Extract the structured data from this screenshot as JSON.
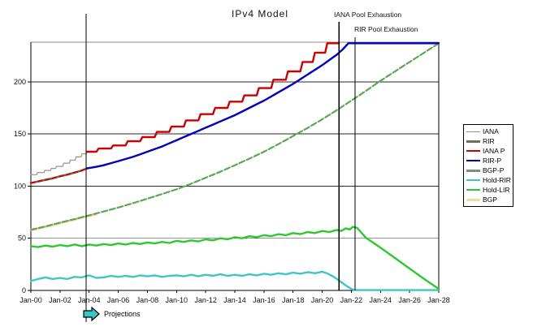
{
  "chart_data": {
    "type": "line",
    "title": "IPv4 Model",
    "projections_label": "Projections",
    "projections_start_year": 3.8,
    "x_axis": {
      "tick_years": [
        0,
        2,
        4,
        6,
        8,
        10,
        12,
        14,
        16,
        18,
        20,
        22,
        24,
        26,
        28
      ],
      "tick_labels": [
        "Jan-00",
        "Jan-02",
        "Jan-04",
        "Jan-06",
        "Jan-08",
        "Jan-10",
        "Jan-12",
        "Jan-14",
        "Jan-16",
        "Jan-18",
        "Jan-20",
        "Jan-22",
        "Jan-24",
        "Jan-26",
        "Jan-28"
      ]
    },
    "y_axis": {
      "tick_values": [
        0,
        50,
        100,
        150,
        200
      ],
      "tick_labels": [
        "0",
        "50",
        "100",
        "150",
        "200"
      ],
      "max": 238
    },
    "xlim_years": [
      0,
      28
    ],
    "annotations": [
      {
        "label": "IANA Pool Exhaustion",
        "year": 21.15
      },
      {
        "label": "RIR Pool Exhaustion",
        "year": 22.26
      }
    ],
    "legend": {
      "items": [
        {
          "label": "IANA",
          "color": "#98948a",
          "width": 1.2
        },
        {
          "label": "RIR",
          "color": "#6e6e5c",
          "width": 3
        },
        {
          "label": "IANA P",
          "color": "#cc0000",
          "width": 2.2
        },
        {
          "label": "RIR-P",
          "color": "#0000bb",
          "width": 2.2
        },
        {
          "label": "BGP-P",
          "color": "#7c8f72",
          "width": 3
        },
        {
          "label": "Hold-RIR",
          "color": "#3ec6c6",
          "width": 2.4
        },
        {
          "label": "Hold-LIR",
          "color": "#2ec82e",
          "width": 2.4
        },
        {
          "label": "BGP",
          "color": "#f5d9a0",
          "width": 3.2
        }
      ]
    },
    "series": [
      {
        "name": "bgp",
        "legend_label": "BGP",
        "color": "#f5d9a0",
        "width": 3.2,
        "points": [
          [
            0,
            58
          ],
          [
            0.5,
            59.5
          ],
          [
            1,
            61
          ],
          [
            1.5,
            62.5
          ],
          [
            2,
            64.5
          ],
          [
            2.5,
            66.5
          ],
          [
            3,
            68
          ],
          [
            3.5,
            70
          ],
          [
            4,
            71.5
          ],
          [
            4.5,
            73
          ]
        ]
      },
      {
        "name": "rir",
        "legend_label": "RIR",
        "color": "#6e6e5c",
        "width": 2.6,
        "points": [
          [
            0,
            103
          ],
          [
            0.5,
            104.5
          ],
          [
            1,
            106
          ],
          [
            1.5,
            107.5
          ],
          [
            2,
            109.5
          ],
          [
            2.5,
            111
          ],
          [
            3,
            113
          ],
          [
            3.5,
            115
          ],
          [
            3.85,
            117
          ]
        ]
      },
      {
        "name": "iana",
        "legend_label": "IANA",
        "color": "#98948a",
        "width": 1.2,
        "points": [
          [
            0,
            111
          ],
          [
            0.4,
            111
          ],
          [
            0.45,
            113
          ],
          [
            0.9,
            113
          ],
          [
            0.95,
            115
          ],
          [
            1.35,
            115
          ],
          [
            1.4,
            117
          ],
          [
            1.7,
            117
          ],
          [
            1.75,
            119
          ],
          [
            2.2,
            119
          ],
          [
            2.25,
            122
          ],
          [
            2.65,
            122
          ],
          [
            2.7,
            125
          ],
          [
            3.05,
            125
          ],
          [
            3.1,
            128
          ],
          [
            3.45,
            128
          ],
          [
            3.5,
            131
          ],
          [
            3.8,
            131
          ],
          [
            3.85,
            133
          ]
        ]
      },
      {
        "name": "iana-p-fit",
        "legend_label": "IANA P",
        "color": "#cc0000",
        "width": 1.8,
        "dash": "5 4",
        "points": [
          [
            0,
            103
          ],
          [
            0.5,
            104.5
          ],
          [
            1,
            106
          ],
          [
            1.5,
            107.5
          ],
          [
            2,
            109.5
          ],
          [
            2.5,
            111
          ],
          [
            3,
            113
          ],
          [
            3.5,
            115
          ],
          [
            3.85,
            117
          ]
        ]
      },
      {
        "name": "bgp-p",
        "legend_label": "BGP-P",
        "color": "#7c8f72",
        "width": 2.2,
        "dash": "6 4",
        "dash_overlay": "#2ec82e",
        "points": [
          [
            0,
            58
          ],
          [
            1,
            61.4
          ],
          [
            2,
            65
          ],
          [
            3,
            68.4
          ],
          [
            4,
            72
          ],
          [
            5,
            75.7
          ],
          [
            6,
            79.5
          ],
          [
            7,
            83.6
          ],
          [
            8,
            88
          ],
          [
            9,
            92.4
          ],
          [
            10,
            97
          ],
          [
            11,
            102.3
          ],
          [
            12,
            108
          ],
          [
            13,
            113.8
          ],
          [
            14,
            120
          ],
          [
            15,
            126.3
          ],
          [
            16,
            133
          ],
          [
            17,
            140.3
          ],
          [
            18,
            148
          ],
          [
            19,
            155.8
          ],
          [
            20,
            164
          ],
          [
            21,
            172.8
          ],
          [
            22,
            182
          ],
          [
            23,
            191.3
          ],
          [
            24,
            201
          ],
          [
            25,
            210
          ],
          [
            26,
            219
          ],
          [
            27,
            228
          ],
          [
            28,
            237
          ]
        ]
      },
      {
        "name": "hold-rir",
        "legend_label": "Hold-RIR",
        "color": "#3ec6c6",
        "width": 2.4,
        "points": [
          [
            0,
            9
          ],
          [
            0.5,
            11
          ],
          [
            1,
            12.5
          ],
          [
            1.5,
            11
          ],
          [
            2,
            12
          ],
          [
            2.5,
            11
          ],
          [
            3,
            13
          ],
          [
            3.5,
            12.5
          ],
          [
            4,
            14.5
          ],
          [
            4.5,
            12
          ],
          [
            5,
            12.5
          ],
          [
            5.5,
            14
          ],
          [
            6,
            13
          ],
          [
            6.5,
            14
          ],
          [
            7,
            13
          ],
          [
            7.5,
            14.5
          ],
          [
            8,
            13.5
          ],
          [
            8.5,
            14.5
          ],
          [
            9,
            13
          ],
          [
            9.5,
            14
          ],
          [
            10,
            14.5
          ],
          [
            10.5,
            13.5
          ],
          [
            11,
            15
          ],
          [
            11.5,
            13.5
          ],
          [
            12,
            15
          ],
          [
            12.5,
            14
          ],
          [
            13,
            15.5
          ],
          [
            13.5,
            14
          ],
          [
            14,
            15
          ],
          [
            14.5,
            14
          ],
          [
            15,
            15.5
          ],
          [
            15.5,
            14.5
          ],
          [
            16,
            16
          ],
          [
            16.5,
            15
          ],
          [
            17,
            16.5
          ],
          [
            17.5,
            15.5
          ],
          [
            18,
            17
          ],
          [
            18.5,
            16
          ],
          [
            19,
            17.5
          ],
          [
            19.5,
            16.5
          ],
          [
            20,
            18
          ],
          [
            20.4,
            16
          ],
          [
            20.8,
            13
          ],
          [
            21.2,
            9
          ],
          [
            21.6,
            5
          ],
          [
            22,
            1.5
          ],
          [
            22.2,
            0.5
          ],
          [
            22.4,
            0.3
          ],
          [
            28,
            0.3
          ]
        ]
      },
      {
        "name": "hold-lir",
        "legend_label": "Hold-LIR",
        "color": "#2ec82e",
        "width": 2.4,
        "points": [
          [
            0,
            42.5
          ],
          [
            0.5,
            41.5
          ],
          [
            1,
            43
          ],
          [
            1.5,
            42
          ],
          [
            2,
            43.5
          ],
          [
            2.5,
            42.5
          ],
          [
            3,
            44
          ],
          [
            3.5,
            42.5
          ],
          [
            4,
            44
          ],
          [
            4.5,
            43
          ],
          [
            5,
            44.5
          ],
          [
            5.5,
            43.5
          ],
          [
            6,
            45
          ],
          [
            6.5,
            44
          ],
          [
            7,
            45.5
          ],
          [
            7.5,
            44.5
          ],
          [
            8,
            46
          ],
          [
            8.5,
            45
          ],
          [
            9,
            46.5
          ],
          [
            9.5,
            45.5
          ],
          [
            10,
            47.5
          ],
          [
            10.5,
            46.5
          ],
          [
            11,
            48
          ],
          [
            11.5,
            47
          ],
          [
            12,
            49
          ],
          [
            12.5,
            48
          ],
          [
            13,
            50
          ],
          [
            13.5,
            49
          ],
          [
            14,
            51
          ],
          [
            14.5,
            50
          ],
          [
            15,
            52
          ],
          [
            15.5,
            51
          ],
          [
            16,
            53
          ],
          [
            16.5,
            52
          ],
          [
            17,
            54
          ],
          [
            17.5,
            53
          ],
          [
            18,
            55
          ],
          [
            18.5,
            54
          ],
          [
            19,
            56
          ],
          [
            19.5,
            55
          ],
          [
            20,
            57
          ],
          [
            20.5,
            56
          ],
          [
            21,
            58
          ],
          [
            21.3,
            57
          ],
          [
            21.6,
            59.5
          ],
          [
            21.9,
            58.5
          ],
          [
            22.1,
            61
          ],
          [
            22.4,
            60
          ],
          [
            23,
            50.5
          ],
          [
            24,
            41
          ],
          [
            25,
            31
          ],
          [
            26,
            21
          ],
          [
            27,
            11
          ],
          [
            28,
            1.5
          ]
        ]
      },
      {
        "name": "rir-p",
        "legend_label": "RIR-P",
        "color": "#0000bb",
        "width": 2.4,
        "points": [
          [
            3.85,
            117
          ],
          [
            4.5,
            118.5
          ],
          [
            5,
            120
          ],
          [
            5.5,
            122
          ],
          [
            6,
            124
          ],
          [
            6.5,
            126
          ],
          [
            7,
            128
          ],
          [
            7.5,
            130.5
          ],
          [
            8,
            133
          ],
          [
            8.5,
            135.5
          ],
          [
            9,
            138
          ],
          [
            9.5,
            141
          ],
          [
            10,
            144
          ],
          [
            10.5,
            147
          ],
          [
            11,
            150
          ],
          [
            11.5,
            153
          ],
          [
            12,
            156
          ],
          [
            12.5,
            159
          ],
          [
            13,
            162
          ],
          [
            13.5,
            165
          ],
          [
            14,
            168
          ],
          [
            14.5,
            171.5
          ],
          [
            15,
            175
          ],
          [
            15.5,
            178.5
          ],
          [
            16,
            182
          ],
          [
            16.5,
            186
          ],
          [
            17,
            190
          ],
          [
            17.5,
            194
          ],
          [
            18,
            198
          ],
          [
            18.5,
            202.5
          ],
          [
            19,
            207
          ],
          [
            19.5,
            211.5
          ],
          [
            20,
            216
          ],
          [
            20.5,
            221
          ],
          [
            21,
            226
          ],
          [
            21.4,
            231
          ],
          [
            21.8,
            237
          ],
          [
            28,
            237
          ]
        ]
      },
      {
        "name": "iana-p",
        "legend_label": "IANA P",
        "color": "#cc0000",
        "width": 2.4,
        "points": [
          [
            3.85,
            133
          ],
          [
            4.5,
            133
          ],
          [
            4.65,
            136
          ],
          [
            5.5,
            136
          ],
          [
            5.65,
            139
          ],
          [
            6.5,
            139
          ],
          [
            6.65,
            143
          ],
          [
            7.5,
            143
          ],
          [
            7.65,
            147
          ],
          [
            8.5,
            147
          ],
          [
            8.65,
            152
          ],
          [
            9.5,
            152
          ],
          [
            9.65,
            157
          ],
          [
            10.5,
            157
          ],
          [
            10.65,
            163
          ],
          [
            11.5,
            163
          ],
          [
            11.65,
            169
          ],
          [
            12.5,
            169
          ],
          [
            12.65,
            175
          ],
          [
            13.5,
            175
          ],
          [
            13.65,
            181
          ],
          [
            14.5,
            181
          ],
          [
            14.65,
            187
          ],
          [
            15.5,
            187
          ],
          [
            15.65,
            194
          ],
          [
            16.5,
            194
          ],
          [
            16.65,
            202
          ],
          [
            17.5,
            202
          ],
          [
            17.65,
            210
          ],
          [
            18.5,
            210
          ],
          [
            18.65,
            219
          ],
          [
            19.35,
            219
          ],
          [
            19.5,
            228
          ],
          [
            20.2,
            228
          ],
          [
            20.35,
            237
          ],
          [
            21.15,
            237
          ]
        ]
      }
    ]
  }
}
